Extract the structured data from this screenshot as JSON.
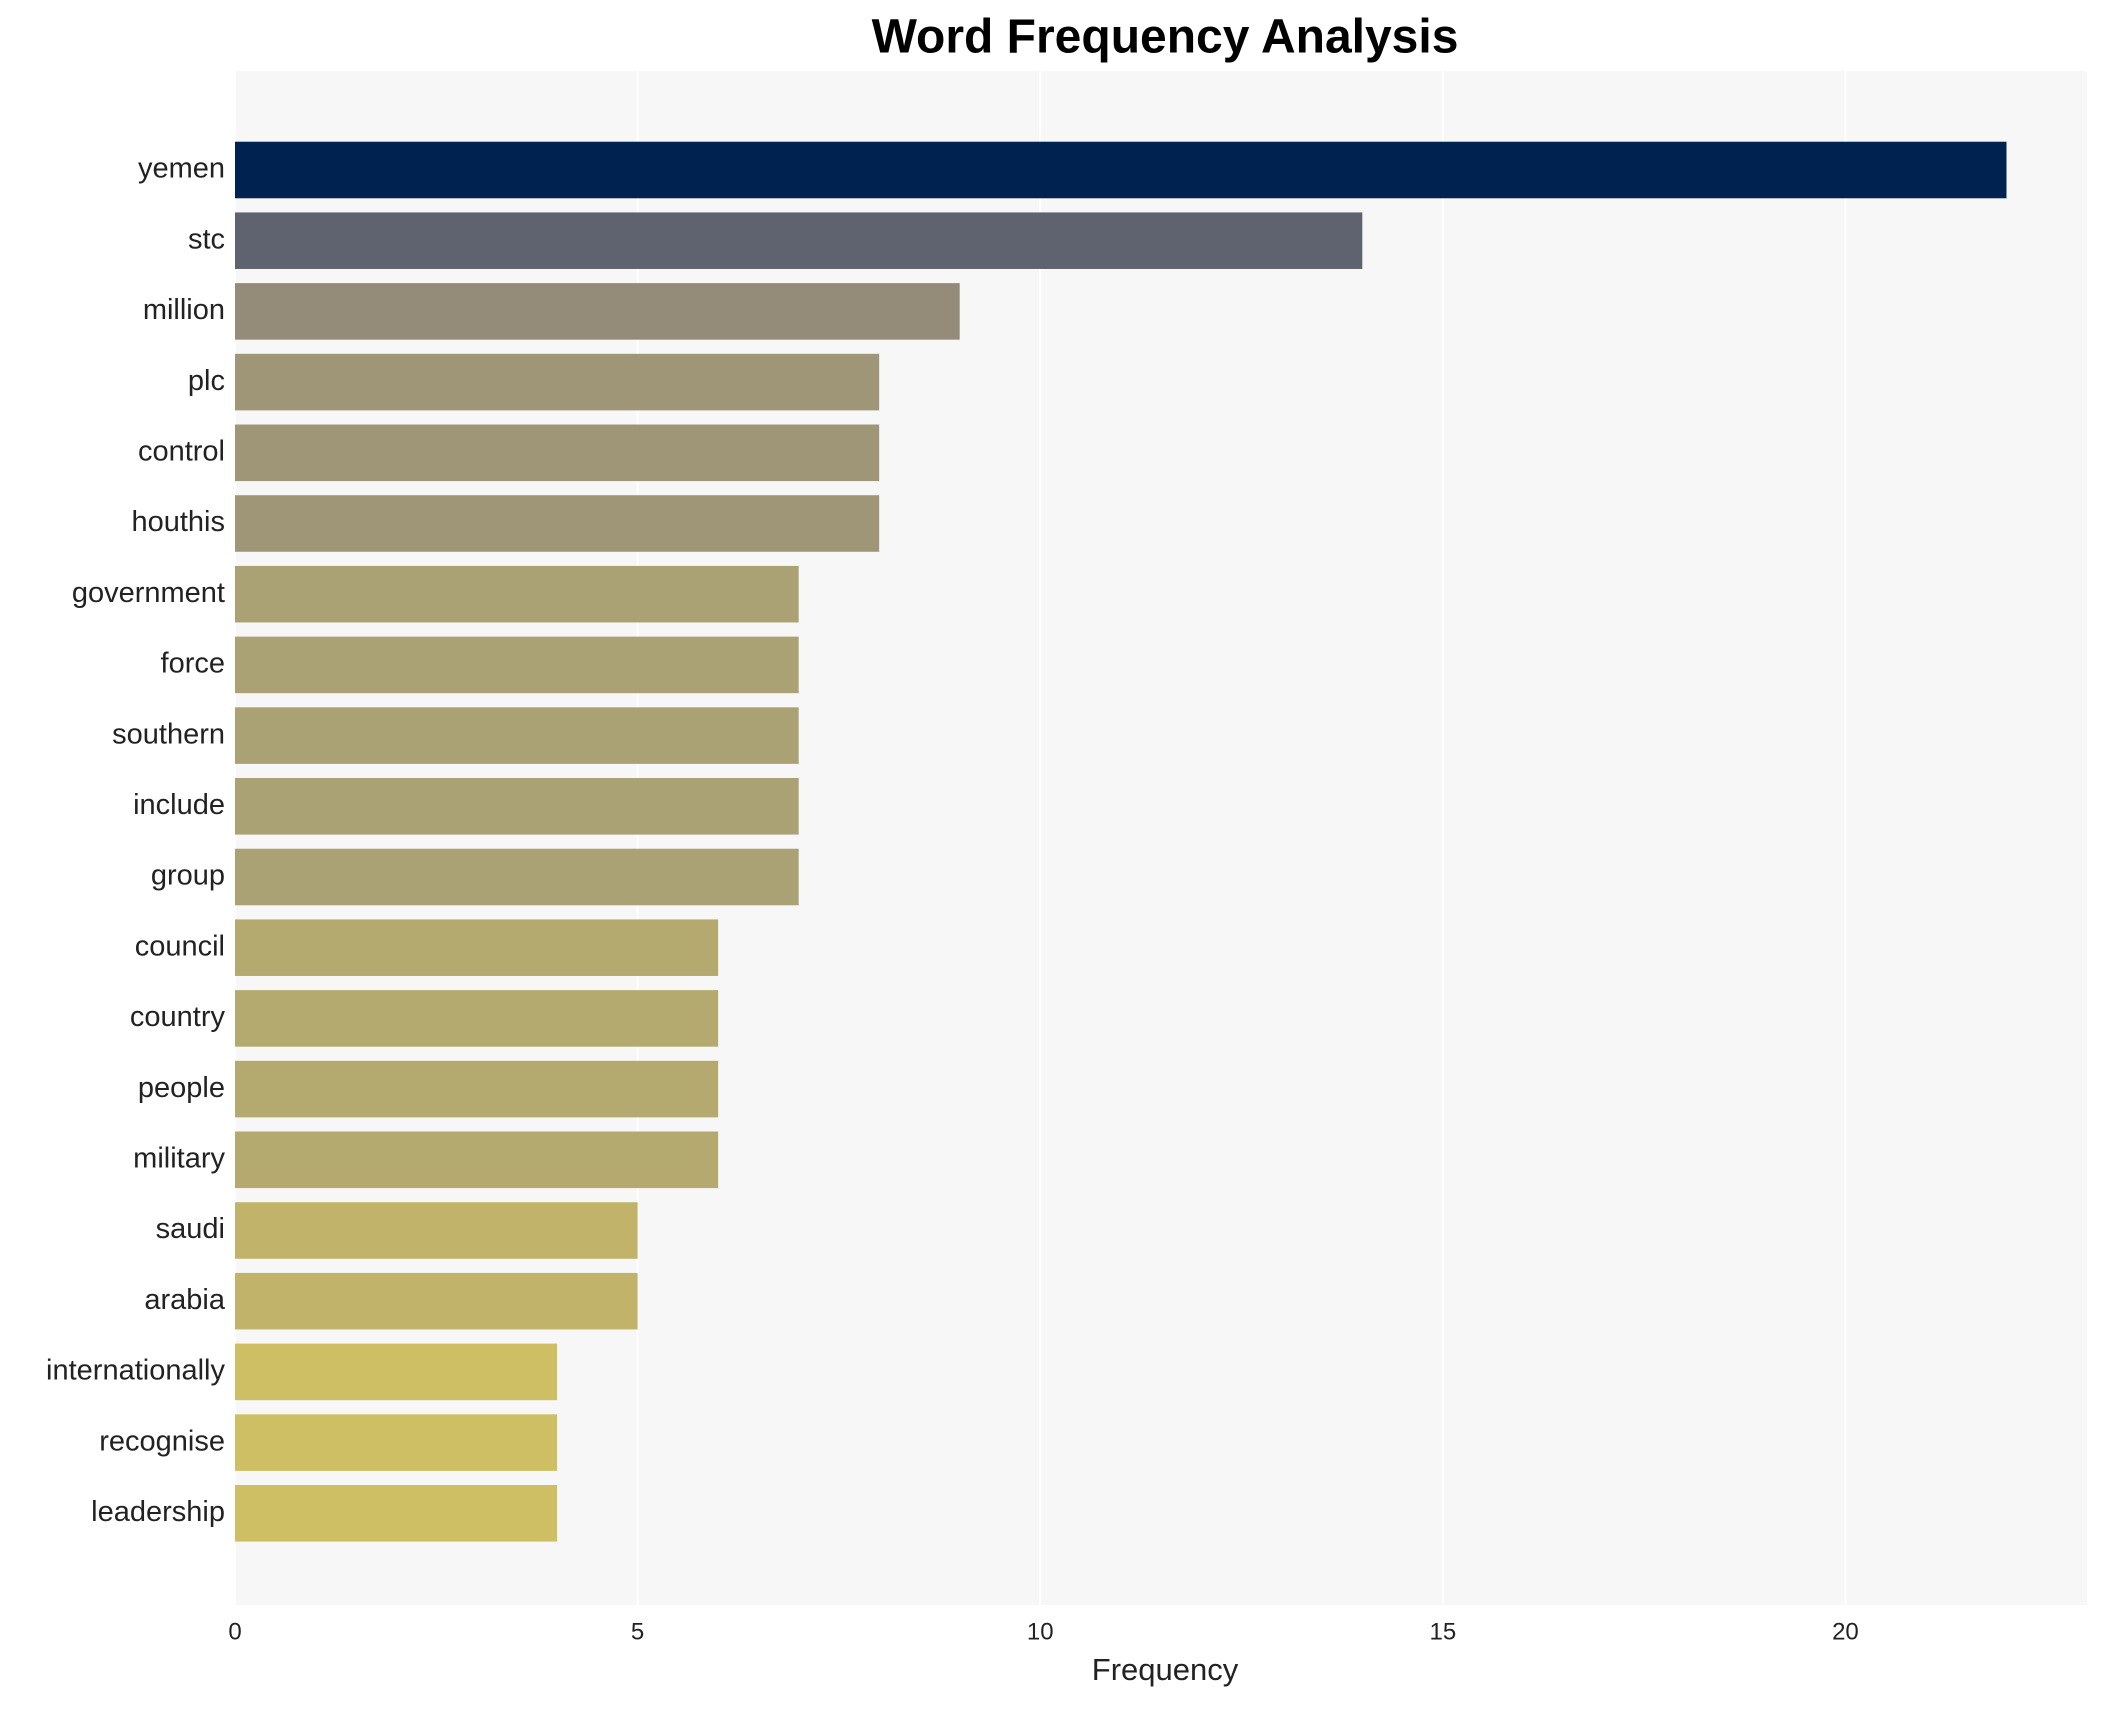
{
  "chart_data": {
    "type": "barh",
    "title": "Word Frequency Analysis",
    "xlabel": "Frequency",
    "categories": [
      "yemen",
      "stc",
      "million",
      "plc",
      "control",
      "houthis",
      "government",
      "force",
      "southern",
      "include",
      "group",
      "council",
      "country",
      "people",
      "military",
      "saudi",
      "arabia",
      "internationally",
      "recognise",
      "leadership"
    ],
    "values": [
      22,
      14,
      9,
      8,
      8,
      8,
      7,
      7,
      7,
      7,
      7,
      6,
      6,
      6,
      6,
      5,
      5,
      4,
      4,
      4
    ],
    "colors": [
      "#002251",
      "#5f6370",
      "#948c78",
      "#9e9677",
      "#9e9677",
      "#9e9677",
      "#aaa174",
      "#aaa174",
      "#aaa174",
      "#aaa174",
      "#aaa174",
      "#b4aa6f",
      "#b4aa6f",
      "#b4aa6f",
      "#b4aa6f",
      "#c2b36b",
      "#c2b36b",
      "#cebf64",
      "#cebf64",
      "#cebf64"
    ],
    "xlim": [
      0,
      23
    ],
    "xticks": [
      0,
      5,
      10,
      15,
      20
    ],
    "grid": true
  }
}
